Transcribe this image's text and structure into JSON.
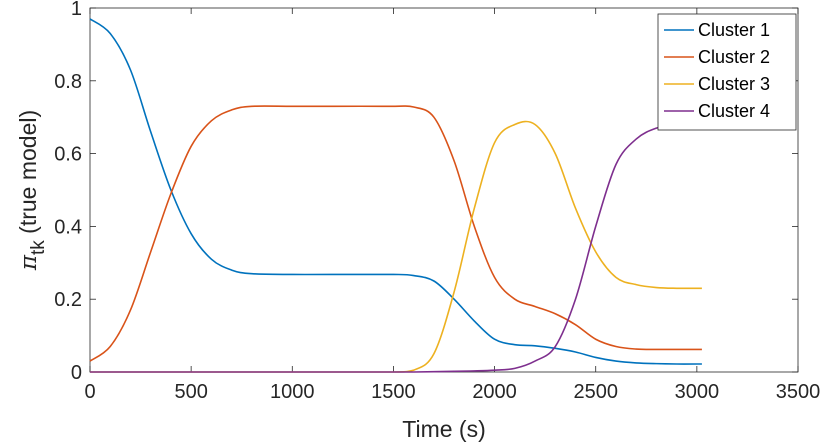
{
  "chart_data": {
    "type": "line",
    "title": "",
    "xlabel": "Time (s)",
    "ylabel_symbol": "π",
    "ylabel_subscript": "tk",
    "ylabel_rest": " (true model)",
    "xlim": [
      0,
      3500
    ],
    "ylim": [
      0,
      1
    ],
    "x_ticks": [
      0,
      500,
      1000,
      1500,
      2000,
      2500,
      3000,
      3500
    ],
    "y_ticks": [
      0,
      0.2,
      0.4,
      0.6,
      0.8,
      1
    ],
    "x_tick_labels": [
      "0",
      "500",
      "1000",
      "1500",
      "2000",
      "2500",
      "3000",
      "3500"
    ],
    "y_tick_labels": [
      "0",
      "0.2",
      "0.4",
      "0.6",
      "0.8",
      "1"
    ],
    "grid": false,
    "legend_position": "top-right",
    "x": [
      0,
      100,
      200,
      300,
      400,
      500,
      600,
      700,
      800,
      1000,
      1200,
      1500,
      1600,
      1700,
      1800,
      1900,
      2000,
      2100,
      2200,
      2300,
      2400,
      2500,
      2600,
      2700,
      2800,
      2900,
      3000,
      3025
    ],
    "series": [
      {
        "name": "Cluster 1",
        "color": "#0072BD",
        "values": [
          0.97,
          0.93,
          0.83,
          0.66,
          0.5,
          0.38,
          0.31,
          0.28,
          0.27,
          0.268,
          0.268,
          0.268,
          0.265,
          0.25,
          0.2,
          0.14,
          0.09,
          0.075,
          0.072,
          0.065,
          0.055,
          0.04,
          0.03,
          0.025,
          0.023,
          0.022,
          0.022,
          0.022
        ]
      },
      {
        "name": "Cluster 2",
        "color": "#D95319",
        "values": [
          0.03,
          0.07,
          0.17,
          0.33,
          0.49,
          0.62,
          0.69,
          0.72,
          0.73,
          0.73,
          0.73,
          0.73,
          0.728,
          0.7,
          0.58,
          0.4,
          0.26,
          0.2,
          0.18,
          0.16,
          0.13,
          0.09,
          0.07,
          0.063,
          0.062,
          0.062,
          0.062,
          0.062
        ]
      },
      {
        "name": "Cluster 3",
        "color": "#EDB120",
        "values": [
          0,
          0,
          0,
          0,
          0,
          0,
          0,
          0,
          0,
          0,
          0,
          0,
          0.005,
          0.05,
          0.22,
          0.45,
          0.63,
          0.68,
          0.68,
          0.6,
          0.45,
          0.33,
          0.26,
          0.24,
          0.232,
          0.23,
          0.23,
          0.23
        ]
      },
      {
        "name": "Cluster 4",
        "color": "#7E2F8E",
        "values": [
          0,
          0,
          0,
          0,
          0,
          0,
          0,
          0,
          0,
          0,
          0,
          0,
          0,
          0.001,
          0.002,
          0.003,
          0.005,
          0.01,
          0.03,
          0.07,
          0.2,
          0.4,
          0.57,
          0.64,
          0.67,
          0.68,
          0.685,
          0.685
        ]
      }
    ]
  }
}
